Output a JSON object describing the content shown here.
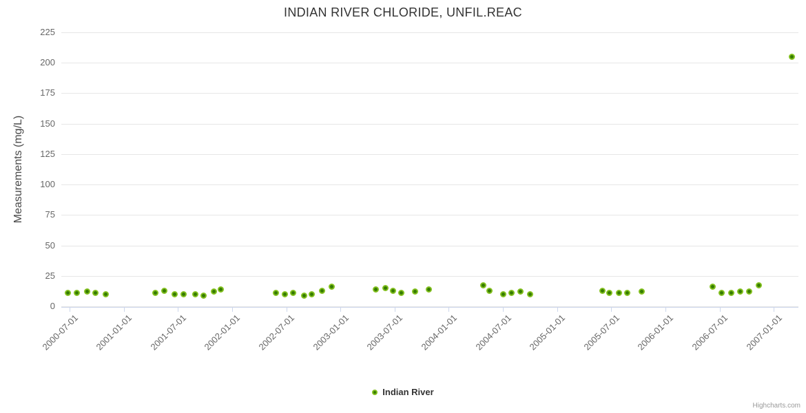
{
  "chart": {
    "title": "INDIAN RIVER CHLORIDE, UNFIL.REAC",
    "y_axis_title": "Measurements (mg/L)",
    "legend_label": "Indian River",
    "credits": "Highcharts.com"
  },
  "colors": {
    "point_core": "#357c02",
    "point_ring": "#82bf1f",
    "grid": "#e6e6e6",
    "axis_line": "#ccd6eb",
    "tick_label": "#666666",
    "title": "#333333",
    "credits": "#999999"
  },
  "chart_data": {
    "type": "scatter",
    "title": "INDIAN RIVER CHLORIDE, UNFIL.REAC",
    "xlabel": "",
    "ylabel": "Measurements (mg/L)",
    "ylim": [
      0,
      225
    ],
    "y_tick_interval": 25,
    "y_tick_labels": [
      "0",
      "25",
      "50",
      "75",
      "100",
      "125",
      "150",
      "175",
      "200",
      "225"
    ],
    "x_tick_labels": [
      "2000-07-01",
      "2001-01-01",
      "2001-07-01",
      "2002-01-01",
      "2002-07-01",
      "2003-01-01",
      "2003-07-01",
      "2004-01-01",
      "2004-07-01",
      "2005-01-01",
      "2005-07-01",
      "2006-01-01",
      "2006-07-01",
      "2007-01-01"
    ],
    "grid": "horizontal",
    "legend_position": "bottom-center",
    "series": [
      {
        "name": "Indian River",
        "points": [
          {
            "x": "2000-06-25",
            "y": 11
          },
          {
            "x": "2000-07-25",
            "y": 11
          },
          {
            "x": "2000-08-30",
            "y": 12
          },
          {
            "x": "2000-09-27",
            "y": 11
          },
          {
            "x": "2000-11-01",
            "y": 10
          },
          {
            "x": "2001-04-16",
            "y": 11
          },
          {
            "x": "2001-05-16",
            "y": 13
          },
          {
            "x": "2001-06-20",
            "y": 10
          },
          {
            "x": "2001-07-20",
            "y": 10
          },
          {
            "x": "2001-08-28",
            "y": 10
          },
          {
            "x": "2001-09-26",
            "y": 9
          },
          {
            "x": "2001-11-01",
            "y": 12
          },
          {
            "x": "2001-11-24",
            "y": 14
          },
          {
            "x": "2002-05-28",
            "y": 11
          },
          {
            "x": "2002-06-26",
            "y": 10
          },
          {
            "x": "2002-07-25",
            "y": 11
          },
          {
            "x": "2002-08-30",
            "y": 9
          },
          {
            "x": "2002-09-27",
            "y": 10
          },
          {
            "x": "2002-11-01",
            "y": 13
          },
          {
            "x": "2002-12-01",
            "y": 16
          },
          {
            "x": "2003-04-28",
            "y": 14
          },
          {
            "x": "2003-05-30",
            "y": 15
          },
          {
            "x": "2003-06-27",
            "y": 13
          },
          {
            "x": "2003-07-24",
            "y": 11
          },
          {
            "x": "2003-09-08",
            "y": 12
          },
          {
            "x": "2003-10-24",
            "y": 14
          },
          {
            "x": "2004-04-27",
            "y": 17
          },
          {
            "x": "2004-05-16",
            "y": 13
          },
          {
            "x": "2004-07-01",
            "y": 10
          },
          {
            "x": "2004-07-29",
            "y": 11
          },
          {
            "x": "2004-08-29",
            "y": 12
          },
          {
            "x": "2004-10-01",
            "y": 10
          },
          {
            "x": "2005-06-01",
            "y": 13
          },
          {
            "x": "2005-06-24",
            "y": 11
          },
          {
            "x": "2005-07-26",
            "y": 11
          },
          {
            "x": "2005-08-25",
            "y": 11
          },
          {
            "x": "2005-10-13",
            "y": 12
          },
          {
            "x": "2006-06-09",
            "y": 16
          },
          {
            "x": "2006-07-07",
            "y": 11
          },
          {
            "x": "2006-08-10",
            "y": 11
          },
          {
            "x": "2006-09-09",
            "y": 12
          },
          {
            "x": "2006-10-09",
            "y": 12
          },
          {
            "x": "2006-11-11",
            "y": 17
          },
          {
            "x": "2007-03-01",
            "y": 205
          }
        ]
      }
    ]
  }
}
